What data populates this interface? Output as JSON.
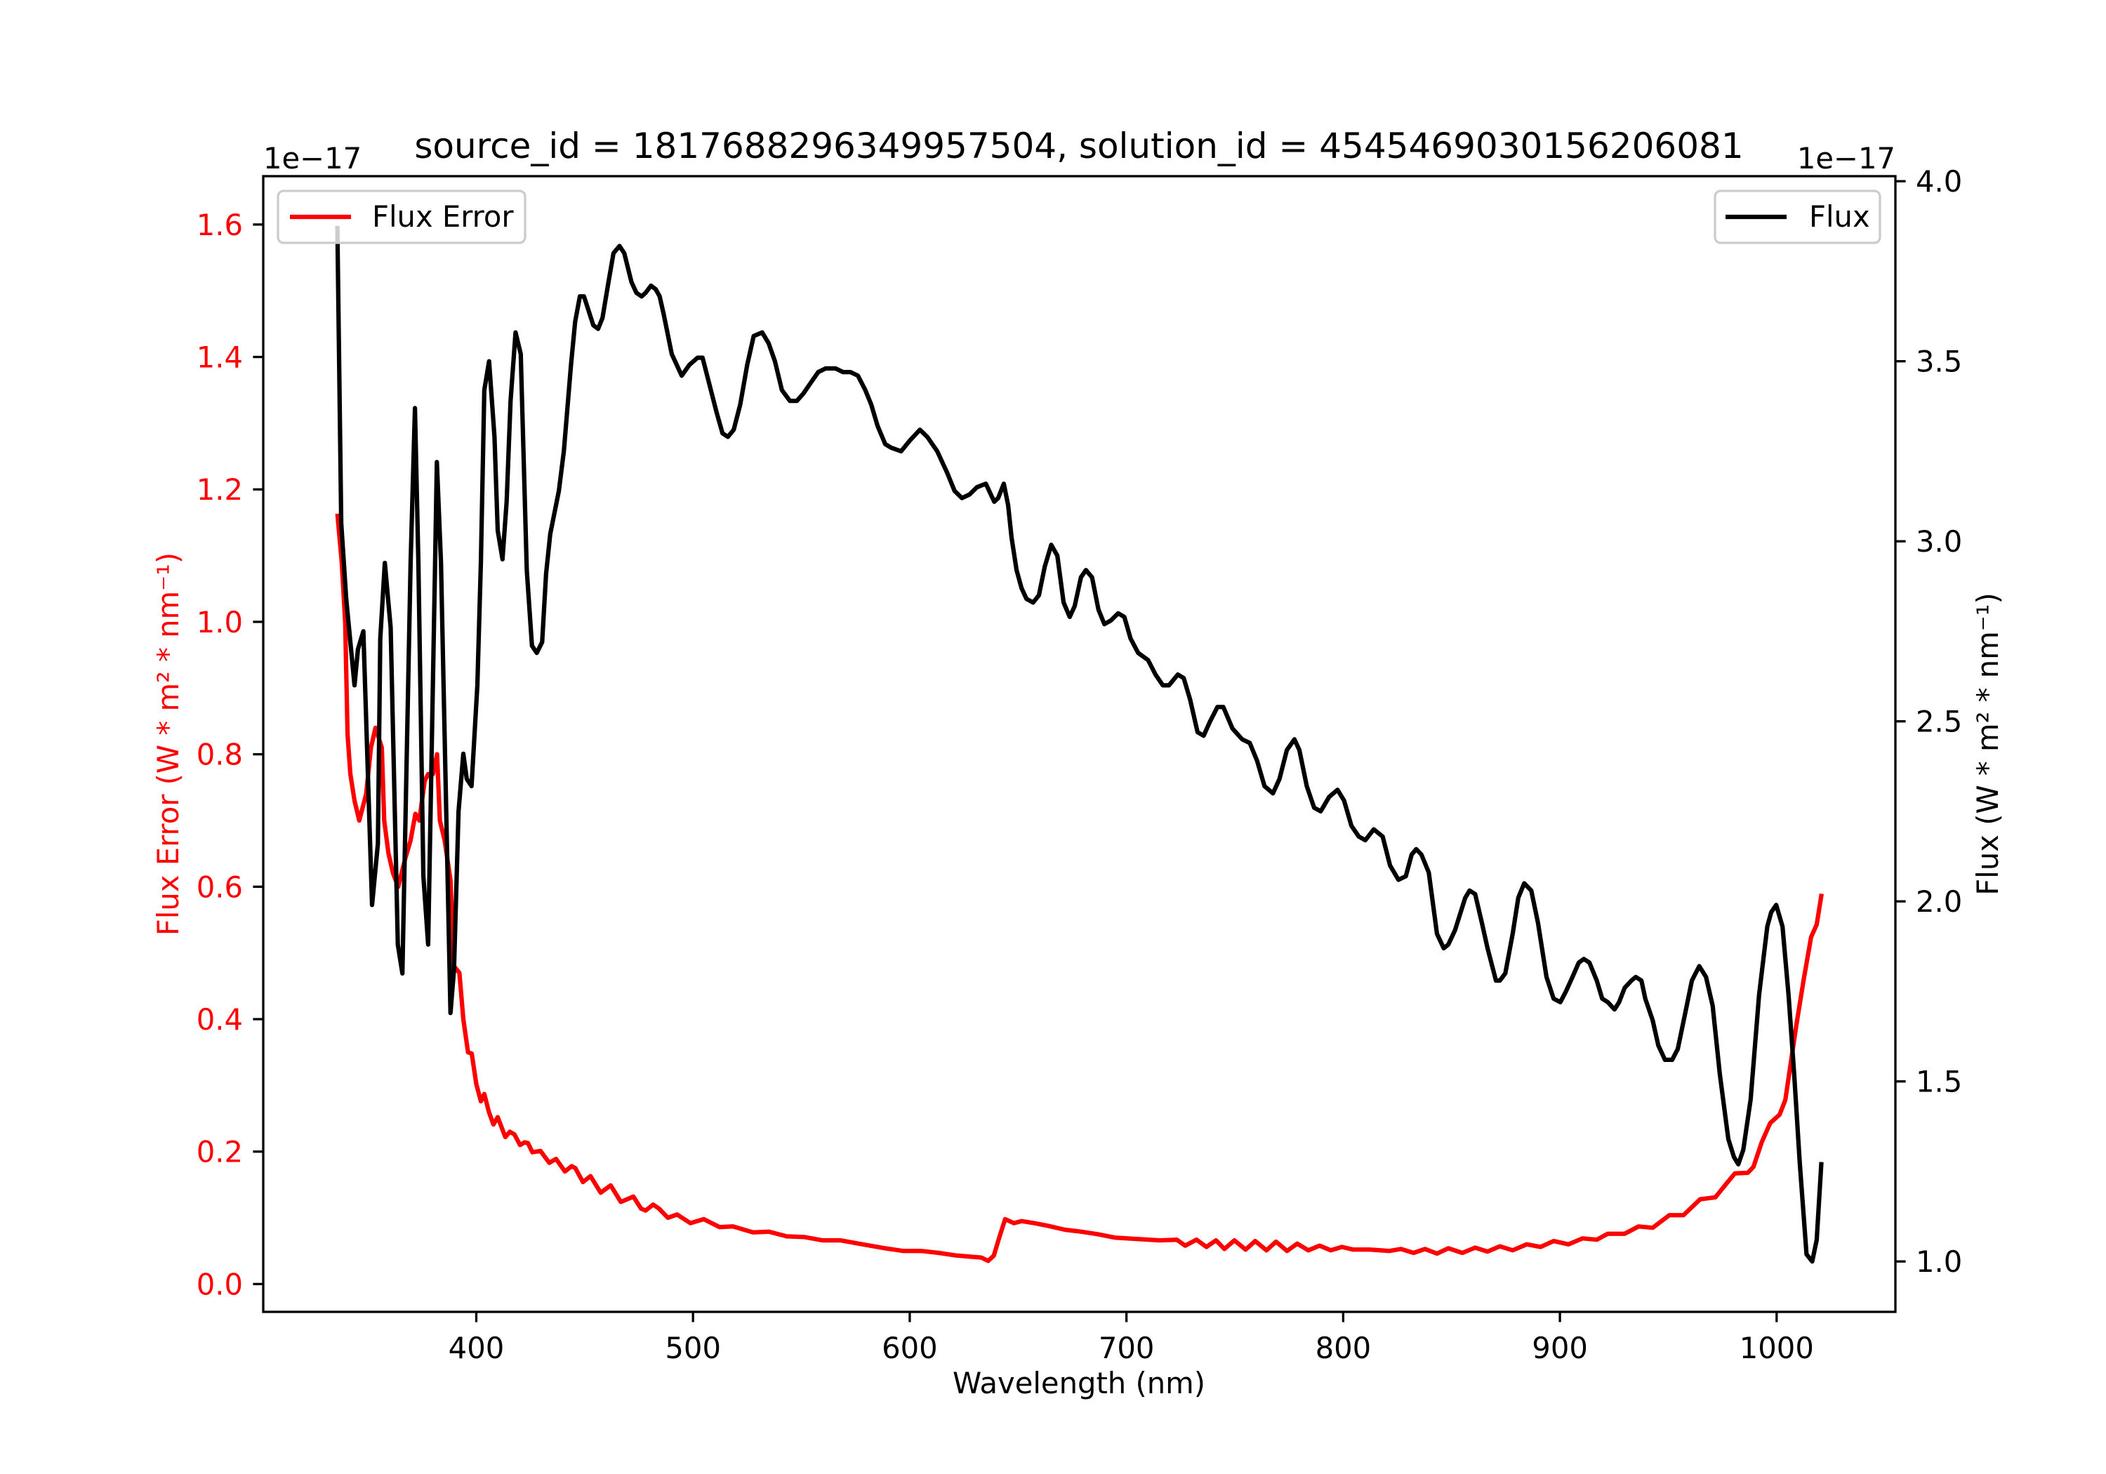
{
  "chart_data": {
    "type": "line",
    "title": "source_id = 1817688296349957504, solution_id = 4545469030156206081",
    "xlabel": "Wavelength (nm)",
    "xlim": [
      301.7,
      1054.8
    ],
    "xticks": [
      400,
      500,
      600,
      700,
      800,
      900,
      1000
    ],
    "xtick_labels": [
      "400",
      "500",
      "600",
      "700",
      "800",
      "900",
      "1000"
    ],
    "grid": false,
    "axes": {
      "left": {
        "ylabel": "Flux Error (W * m² * nm⁻¹)",
        "offset_text": "1e−17",
        "ylim": [
          -0.042,
          1.673
        ],
        "yticks": [
          0.0,
          0.2,
          0.4,
          0.6,
          0.8,
          1.0,
          1.2,
          1.4,
          1.6
        ],
        "ytick_labels": [
          "0.0",
          "0.2",
          "0.4",
          "0.6",
          "0.8",
          "1.0",
          "1.2",
          "1.4",
          "1.6"
        ],
        "color": "#ff0000"
      },
      "right": {
        "ylabel": "Flux (W * m² * nm⁻¹)",
        "offset_text": "1e−17",
        "ylim": [
          0.86,
          4.014
        ],
        "yticks": [
          1.0,
          1.5,
          2.0,
          2.5,
          3.0,
          3.5,
          4.0
        ],
        "ytick_labels": [
          "1.0",
          "1.5",
          "2.0",
          "2.5",
          "3.0",
          "3.5",
          "4.0"
        ],
        "color": "#000000"
      }
    },
    "series": [
      {
        "name": "Flux Error",
        "axis": "left",
        "color": "#ff0000",
        "legend": "top-left",
        "x": [
          336.0,
          337.9,
          339.5,
          340.6,
          341.9,
          343.8,
          346.0,
          349.2,
          351.4,
          353.5,
          356.4,
          357.5,
          359.5,
          361.6,
          364.0,
          367.0,
          369.7,
          371.9,
          373.7,
          376.2,
          377.8,
          380.0,
          381.9,
          383.2,
          385.4,
          388.1,
          389.7,
          392.2,
          394.0,
          396.2,
          397.9,
          400.0,
          402.1,
          403.7,
          405.8,
          407.9,
          409.9,
          413.4,
          415.5,
          417.6,
          420.2,
          422.3,
          423.8,
          425.9,
          429.6,
          433.7,
          436.8,
          440.9,
          444.0,
          445.7,
          449.2,
          452.7,
          457.4,
          462.0,
          466.7,
          472.5,
          476.0,
          478.1,
          481.6,
          484.3,
          488.4,
          492.6,
          498.8,
          505.0,
          512.2,
          518.4,
          527.7,
          535.0,
          543.2,
          551.4,
          559.7,
          568.0,
          578.3,
          588.6,
          596.9,
          605.2,
          613.4,
          621.7,
          633.0,
          636.2,
          638.8,
          641.3,
          644.0,
          648.1,
          651.6,
          657.4,
          663.8,
          671.6,
          679.3,
          687.1,
          694.8,
          705.2,
          715.5,
          723.2,
          727.1,
          732.3,
          736.9,
          741.3,
          745.2,
          749.8,
          755.0,
          759.4,
          764.6,
          769.0,
          774.1,
          778.8,
          783.9,
          789.1,
          794.3,
          799.4,
          804.6,
          812.3,
          821.4,
          826.6,
          832.5,
          837.7,
          843.3,
          848.5,
          855.0,
          860.9,
          866.6,
          872.3,
          878.2,
          884.7,
          891.1,
          897.1,
          904.0,
          910.5,
          917.0,
          922.1,
          929.9,
          936.3,
          942.8,
          950.5,
          957.0,
          964.7,
          971.7,
          976.4,
          980.7,
          986.7,
          989.3,
          993.1,
          997.0,
          1001.4,
          1004.0,
          1006.0,
          1009.1,
          1012.5,
          1015.9,
          1018.5,
          1020.6
        ],
        "y": [
          1.16,
          1.09,
          1.0,
          0.83,
          0.77,
          0.73,
          0.7,
          0.74,
          0.81,
          0.84,
          0.81,
          0.7,
          0.65,
          0.62,
          0.6,
          0.64,
          0.67,
          0.71,
          0.7,
          0.76,
          0.77,
          0.77,
          0.8,
          0.7,
          0.67,
          0.61,
          0.48,
          0.47,
          0.4,
          0.35,
          0.348,
          0.302,
          0.276,
          0.287,
          0.26,
          0.241,
          0.252,
          0.222,
          0.23,
          0.226,
          0.21,
          0.214,
          0.213,
          0.199,
          0.201,
          0.183,
          0.189,
          0.17,
          0.178,
          0.175,
          0.154,
          0.163,
          0.138,
          0.149,
          0.124,
          0.132,
          0.114,
          0.111,
          0.12,
          0.114,
          0.1,
          0.105,
          0.092,
          0.098,
          0.086,
          0.087,
          0.078,
          0.079,
          0.072,
          0.071,
          0.066,
          0.066,
          0.06,
          0.054,
          0.05,
          0.05,
          0.047,
          0.043,
          0.04,
          0.035,
          0.043,
          0.07,
          0.098,
          0.092,
          0.095,
          0.092,
          0.088,
          0.082,
          0.079,
          0.075,
          0.07,
          0.068,
          0.066,
          0.067,
          0.058,
          0.067,
          0.056,
          0.066,
          0.053,
          0.066,
          0.052,
          0.065,
          0.051,
          0.064,
          0.05,
          0.061,
          0.051,
          0.058,
          0.051,
          0.056,
          0.052,
          0.052,
          0.05,
          0.053,
          0.047,
          0.053,
          0.046,
          0.054,
          0.047,
          0.055,
          0.049,
          0.057,
          0.051,
          0.06,
          0.056,
          0.065,
          0.06,
          0.069,
          0.067,
          0.076,
          0.076,
          0.087,
          0.085,
          0.104,
          0.104,
          0.128,
          0.131,
          0.15,
          0.167,
          0.168,
          0.177,
          0.214,
          0.243,
          0.256,
          0.278,
          0.322,
          0.391,
          0.46,
          0.524,
          0.543,
          0.586
        ]
      },
      {
        "name": "Flux",
        "axis": "right",
        "color": "#000000",
        "legend": "top-right",
        "x": [
          335.9,
          337.7,
          340.0,
          343.8,
          345.4,
          347.9,
          351.9,
          354.6,
          355.7,
          357.8,
          360.5,
          363.8,
          365.9,
          369.7,
          371.7,
          373.3,
          375.6,
          377.8,
          381.0,
          381.8,
          383.7,
          388.1,
          389.7,
          391.8,
          394.0,
          395.6,
          397.8,
          400.5,
          402.1,
          403.7,
          405.9,
          408.4,
          409.9,
          412.1,
          414.0,
          415.8,
          418.1,
          420.5,
          423.3,
          425.7,
          427.9,
          430.4,
          432.2,
          434.1,
          438.1,
          440.4,
          443.7,
          445.6,
          447.8,
          449.7,
          454.0,
          456.2,
          458.2,
          461.0,
          463.3,
          466.1,
          468.3,
          471.6,
          473.9,
          476.3,
          478.1,
          480.6,
          482.8,
          484.6,
          486.5,
          490.2,
          494.8,
          498.3,
          502.1,
          504.4,
          507.4,
          510.8,
          513.6,
          516.1,
          518.8,
          521.8,
          525.0,
          528.0,
          531.9,
          534.9,
          537.8,
          541.0,
          544.7,
          547.9,
          550.9,
          554.3,
          557.8,
          561.2,
          565.8,
          569.2,
          572.6,
          576.1,
          579.5,
          582.2,
          585.2,
          588.7,
          591.4,
          596.0,
          600.1,
          604.7,
          608.1,
          612.7,
          617.3,
          620.7,
          624.1,
          627.6,
          631.0,
          635.1,
          639.0,
          640.8,
          643.4,
          645.4,
          647.0,
          649.3,
          651.6,
          653.9,
          656.9,
          659.6,
          662.3,
          665.3,
          668.1,
          671.0,
          673.8,
          676.1,
          679.0,
          681.3,
          684.1,
          687.1,
          689.8,
          692.8,
          696.2,
          699.0,
          701.9,
          705.4,
          710.0,
          713.4,
          716.8,
          719.6,
          723.7,
          726.4,
          729.4,
          732.8,
          735.6,
          738.6,
          742.0,
          744.7,
          748.9,
          753.4,
          756.9,
          760.3,
          763.7,
          767.6,
          770.6,
          774.0,
          777.5,
          779.8,
          783.2,
          786.6,
          789.6,
          793.5,
          797.4,
          800.4,
          803.8,
          807.2,
          810.2,
          814.1,
          818.2,
          821.6,
          825.5,
          828.9,
          831.6,
          833.7,
          836.1,
          839.5,
          843.3,
          846.4,
          848.5,
          851.6,
          856.3,
          858.3,
          860.9,
          864.0,
          866.6,
          870.5,
          872.3,
          874.8,
          878.2,
          880.8,
          883.5,
          886.8,
          889.9,
          893.8,
          897.1,
          900.2,
          902.8,
          905.8,
          908.7,
          911.0,
          913.6,
          917.0,
          919.5,
          922.1,
          925.2,
          927.3,
          929.9,
          933.0,
          935.0,
          937.6,
          939.4,
          942.8,
          945.4,
          948.5,
          951.8,
          954.4,
          957.5,
          960.9,
          964.3,
          967.4,
          970.5,
          973.8,
          977.7,
          980.3,
          982.3,
          984.6,
          988.0,
          991.9,
          995.7,
          997.5,
          999.8,
          1002.7,
          1005.5,
          1008.1,
          1010.7,
          1013.8,
          1016.4,
          1018.5,
          1020.6
        ],
        "y": [
          3.87,
          3.05,
          2.84,
          2.6,
          2.7,
          2.75,
          1.99,
          2.16,
          2.73,
          2.94,
          2.76,
          1.88,
          1.8,
          2.94,
          3.37,
          2.94,
          2.07,
          1.88,
          2.94,
          3.22,
          2.94,
          1.69,
          1.81,
          2.25,
          2.41,
          2.34,
          2.32,
          2.6,
          2.94,
          3.42,
          3.5,
          3.29,
          3.03,
          2.95,
          3.11,
          3.39,
          3.58,
          3.52,
          2.92,
          2.71,
          2.69,
          2.72,
          2.91,
          3.02,
          3.14,
          3.25,
          3.49,
          3.61,
          3.68,
          3.68,
          3.6,
          3.59,
          3.62,
          3.72,
          3.8,
          3.82,
          3.8,
          3.72,
          3.69,
          3.68,
          3.69,
          3.71,
          3.7,
          3.68,
          3.63,
          3.52,
          3.46,
          3.49,
          3.51,
          3.51,
          3.44,
          3.36,
          3.3,
          3.29,
          3.31,
          3.38,
          3.49,
          3.57,
          3.58,
          3.55,
          3.5,
          3.42,
          3.39,
          3.39,
          3.41,
          3.44,
          3.47,
          3.48,
          3.48,
          3.47,
          3.47,
          3.46,
          3.42,
          3.38,
          3.32,
          3.27,
          3.26,
          3.25,
          3.28,
          3.31,
          3.29,
          3.25,
          3.19,
          3.14,
          3.12,
          3.13,
          3.15,
          3.16,
          3.11,
          3.12,
          3.16,
          3.1,
          3.01,
          2.92,
          2.87,
          2.84,
          2.83,
          2.85,
          2.93,
          2.99,
          2.96,
          2.83,
          2.79,
          2.82,
          2.9,
          2.92,
          2.9,
          2.81,
          2.77,
          2.78,
          2.8,
          2.79,
          2.73,
          2.69,
          2.67,
          2.63,
          2.6,
          2.6,
          2.63,
          2.62,
          2.56,
          2.47,
          2.46,
          2.5,
          2.54,
          2.54,
          2.48,
          2.45,
          2.44,
          2.39,
          2.32,
          2.3,
          2.34,
          2.42,
          2.45,
          2.42,
          2.32,
          2.26,
          2.25,
          2.29,
          2.31,
          2.28,
          2.21,
          2.18,
          2.17,
          2.2,
          2.18,
          2.1,
          2.06,
          2.07,
          2.13,
          2.145,
          2.13,
          2.08,
          1.91,
          1.87,
          1.88,
          1.92,
          2.01,
          2.03,
          2.02,
          1.94,
          1.87,
          1.78,
          1.78,
          1.8,
          1.91,
          2.01,
          2.05,
          2.03,
          1.94,
          1.79,
          1.73,
          1.72,
          1.75,
          1.79,
          1.83,
          1.84,
          1.83,
          1.78,
          1.73,
          1.72,
          1.7,
          1.72,
          1.76,
          1.78,
          1.79,
          1.78,
          1.73,
          1.67,
          1.6,
          1.56,
          1.56,
          1.59,
          1.68,
          1.78,
          1.82,
          1.79,
          1.71,
          1.52,
          1.34,
          1.29,
          1.27,
          1.31,
          1.45,
          1.74,
          1.93,
          1.97,
          1.99,
          1.93,
          1.74,
          1.52,
          1.27,
          1.02,
          1.0,
          1.06,
          1.27
        ]
      }
    ]
  }
}
